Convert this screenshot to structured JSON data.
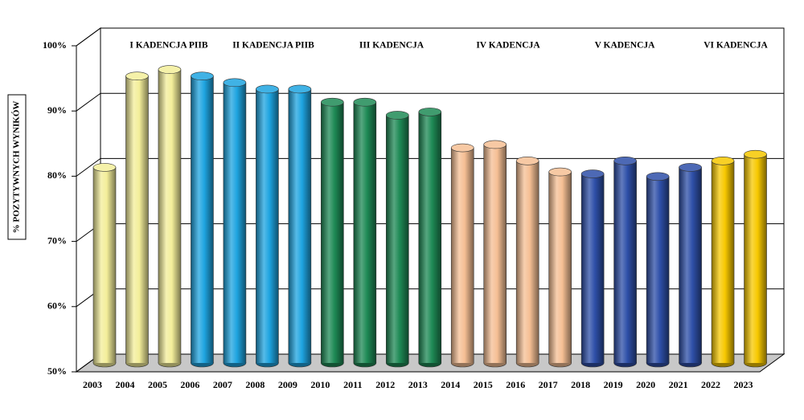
{
  "chart_data": {
    "type": "bar",
    "y_label": "% POZYTYWNYCH  WYNIKÓW",
    "categories": [
      "2003",
      "2004",
      "2005",
      "2006",
      "2007",
      "2008",
      "2009",
      "2010",
      "2011",
      "2012",
      "2013",
      "2014",
      "2015",
      "2016",
      "2017",
      "2018",
      "2019",
      "2020",
      "2021",
      "2022",
      "2023"
    ],
    "values": [
      80,
      94,
      95,
      94,
      93,
      92,
      92,
      90,
      90,
      88,
      88.5,
      83,
      83.5,
      81,
      79.3,
      79,
      81,
      78.6,
      80,
      81,
      82
    ],
    "colors": [
      "#f3ee9a",
      "#f3ee9a",
      "#f3ee9a",
      "#1ea4e0",
      "#1ea4e0",
      "#1ea4e0",
      "#1ea4e0",
      "#1e8a55",
      "#1e8a55",
      "#1e8a55",
      "#1e8a55",
      "#f5bf94",
      "#f5bf94",
      "#f5bf94",
      "#f5bf94",
      "#2e4fa8",
      "#2e4fa8",
      "#2e4fa8",
      "#2e4fa8",
      "#f7c800",
      "#f7c800"
    ],
    "annotations": [
      "I KADENCJA PIIB",
      "II KADENCJA PIIB",
      "III KADENCJA",
      "IV KADENCJA",
      "V KADENCJA",
      "VI KADENCJA"
    ],
    "ylim": [
      50,
      100
    ],
    "yticks": [
      {
        "value": 50,
        "label": "50%"
      },
      {
        "value": 60,
        "label": "60%"
      },
      {
        "value": 70,
        "label": "70%"
      },
      {
        "value": 80,
        "label": "80%"
      },
      {
        "value": 90,
        "label": "90%"
      },
      {
        "value": 100,
        "label": "100%"
      }
    ],
    "grid": true
  }
}
